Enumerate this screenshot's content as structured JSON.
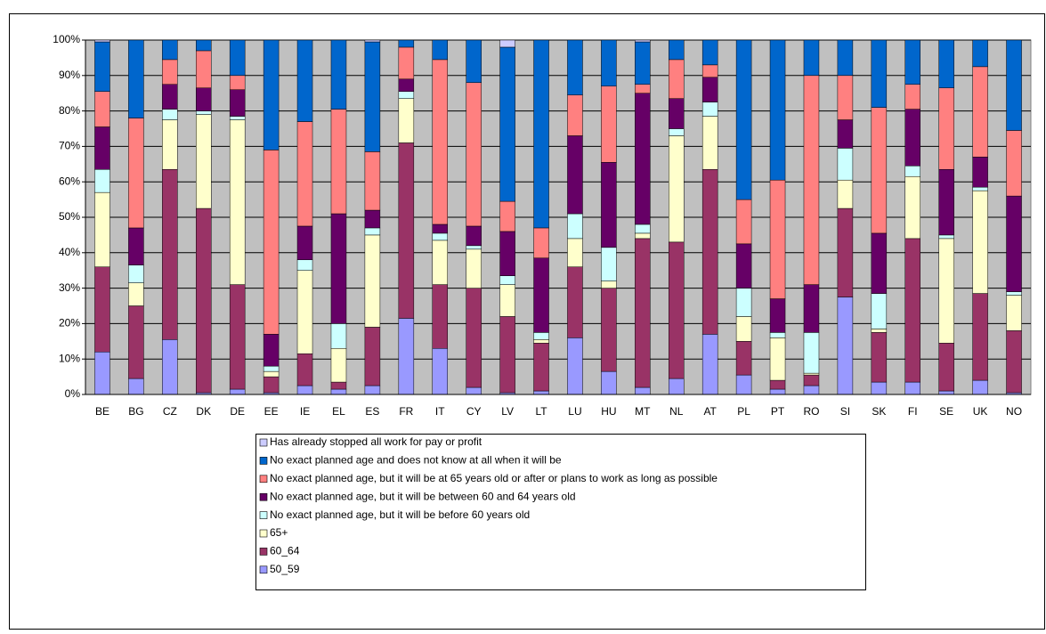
{
  "chart_data": {
    "type": "stacked-bar",
    "categories": [
      "BE",
      "BG",
      "CZ",
      "DK",
      "DE",
      "EE",
      "IE",
      "EL",
      "ES",
      "FR",
      "IT",
      "CY",
      "LV",
      "LT",
      "LU",
      "HU",
      "MT",
      "NL",
      "AT",
      "PL",
      "PT",
      "RO",
      "SI",
      "SK",
      "FI",
      "SE",
      "UK",
      "NO"
    ],
    "series": [
      {
        "name": "50_59",
        "color": "#9999ff",
        "values": [
          12,
          4.5,
          15.5,
          0.5,
          1.5,
          0.5,
          2.5,
          1.5,
          2.5,
          21.5,
          13,
          2,
          0.5,
          1,
          16,
          6.5,
          2,
          4.5,
          17,
          5.5,
          1.5,
          2.5,
          27.5,
          3.5,
          3.5,
          1,
          4,
          0.5
        ]
      },
      {
        "name": "60_64",
        "color": "#993366",
        "values": [
          24,
          20.5,
          48,
          52,
          29.5,
          4.5,
          9,
          2,
          16.5,
          49.5,
          18,
          28,
          21.5,
          13.5,
          20,
          23.5,
          42,
          38.5,
          46.5,
          9.5,
          2.5,
          3,
          25,
          14,
          40.5,
          13.5,
          24.5,
          17.5
        ]
      },
      {
        "name": "65+",
        "color": "#ffffcc",
        "values": [
          21,
          6.5,
          14,
          26.5,
          46.5,
          1.5,
          23.5,
          9.5,
          26,
          12.5,
          12.5,
          11,
          9,
          1,
          8,
          2,
          1.5,
          30,
          15,
          7,
          12,
          0.5,
          8,
          1,
          17.5,
          29.5,
          29,
          10
        ]
      },
      {
        "name": "No exact planned age, but it will be before 60 years old",
        "color": "#ccffff",
        "values": [
          6.5,
          5,
          3,
          1,
          1,
          1.5,
          3,
          7,
          2,
          2,
          2,
          1,
          2.5,
          2,
          7,
          9.5,
          2.5,
          2,
          4,
          8,
          1.5,
          11.5,
          9,
          10,
          3,
          1,
          1,
          1
        ]
      },
      {
        "name": "No exact planned age, but it will be between 60 and 64 years old",
        "color": "#660066",
        "values": [
          12,
          10.5,
          7,
          6.5,
          7.5,
          9,
          9.5,
          31,
          5,
          3.5,
          2.5,
          5.5,
          12.5,
          21,
          22,
          24,
          37,
          8.5,
          7,
          12.5,
          9.5,
          13.5,
          8,
          17,
          16,
          18.5,
          8.5,
          27
        ]
      },
      {
        "name": "No exact planned age, but it will be at 65 years old or after or plans to work as long as possible",
        "color": "#ff8080",
        "values": [
          10,
          31,
          7,
          10.5,
          4,
          52,
          29.5,
          29.5,
          16.5,
          9,
          46.5,
          40.5,
          8.5,
          8.5,
          11.5,
          21.5,
          2.5,
          11,
          3.5,
          12.5,
          33.5,
          59,
          12.5,
          35.5,
          7,
          23,
          25.5,
          18.5
        ]
      },
      {
        "name": "No exact planned age and does not know at all when it will be",
        "color": "#0066cc",
        "values": [
          14,
          22,
          5.5,
          3,
          10,
          31,
          23,
          19.5,
          31,
          2,
          5.5,
          12,
          43.5,
          53,
          15.5,
          13,
          12,
          5.5,
          7,
          45,
          39.5,
          10,
          10,
          19,
          12.5,
          13.5,
          7.5,
          25.5
        ]
      },
      {
        "name": "Has already stopped all work for pay or profit",
        "color": "#ccccff",
        "values": [
          0.5,
          0,
          0,
          0,
          0,
          0,
          0,
          0,
          0.5,
          0,
          0,
          0,
          2,
          0,
          0,
          0,
          0.5,
          0,
          0,
          0,
          0,
          0,
          0,
          0,
          0,
          0,
          0,
          0
        ]
      }
    ],
    "ylim": [
      0,
      100
    ],
    "yticks": [
      {
        "value": 0,
        "label": "0%"
      },
      {
        "value": 10,
        "label": "10%"
      },
      {
        "value": 20,
        "label": "20%"
      },
      {
        "value": 30,
        "label": "30%"
      },
      {
        "value": 40,
        "label": "40%"
      },
      {
        "value": 50,
        "label": "50%"
      },
      {
        "value": 60,
        "label": "60%"
      },
      {
        "value": 70,
        "label": "70%"
      },
      {
        "value": 80,
        "label": "80%"
      },
      {
        "value": 90,
        "label": "90%"
      },
      {
        "value": 100,
        "label": "100%"
      }
    ],
    "grid": true
  }
}
